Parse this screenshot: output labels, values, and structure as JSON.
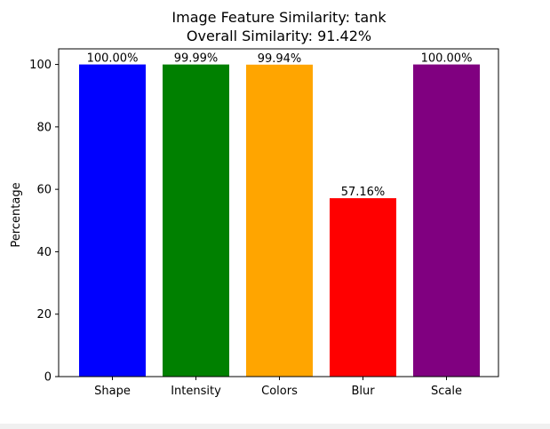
{
  "chart_data": {
    "type": "bar",
    "title": "Image Feature Similarity: tank",
    "subtitle": "Overall Similarity: 91.42%",
    "xlabel": "",
    "ylabel": "Percentage",
    "categories": [
      "Shape",
      "Intensity",
      "Colors",
      "Blur",
      "Scale"
    ],
    "values": [
      100.0,
      99.99,
      99.94,
      57.16,
      100.0
    ],
    "value_labels": [
      "100.00%",
      "99.99%",
      "99.94%",
      "57.16%",
      "100.00%"
    ],
    "colors": [
      "#0000ff",
      "#008000",
      "#ffa500",
      "#ff0000",
      "#800080"
    ],
    "ylim": [
      0,
      105
    ],
    "yticks": [
      0,
      20,
      40,
      60,
      80,
      100
    ],
    "grid": false,
    "legend": "none"
  }
}
